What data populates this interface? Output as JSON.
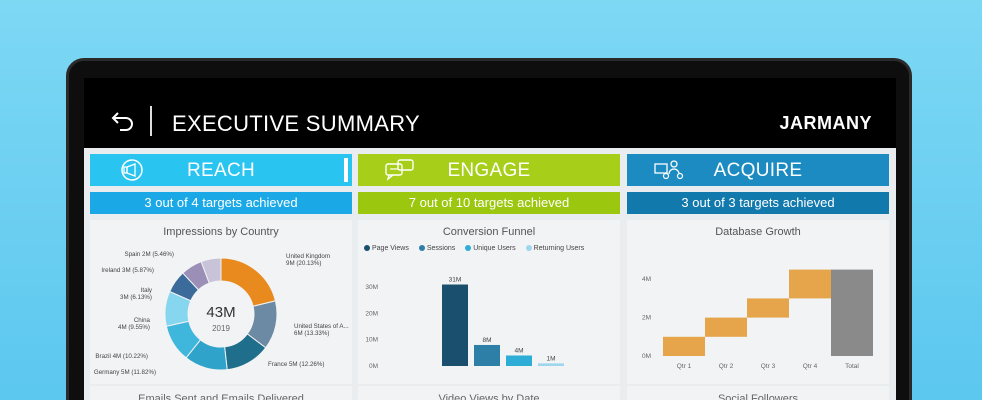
{
  "header": {
    "title": "EXECUTIVE SUMMARY",
    "brand": "JARMANY"
  },
  "columns": {
    "reach": {
      "label": "REACH",
      "subtitle": "3 out of 4 targets achieved",
      "color": "#29c4f0",
      "sub_color": "#1aa9e6"
    },
    "engage": {
      "label": "ENGAGE",
      "subtitle": "7 out of 10 targets achieved",
      "color": "#a7cf1a",
      "sub_color": "#9cc70f"
    },
    "acquire": {
      "label": "ACQUIRE",
      "subtitle": "3 out of 3 targets achieved",
      "color": "#1b8bc2",
      "sub_color": "#1279ad"
    }
  },
  "panels": {
    "impressions": {
      "title": "Impressions by Country",
      "center_value": "43M",
      "center_sub": "2019"
    },
    "funnel": {
      "title": "Conversion Funnel"
    },
    "growth": {
      "title": "Database Growth"
    }
  },
  "bottom_titles": {
    "reach": "Emails Sent and Emails Delivered",
    "engage": "Video Views by Date",
    "acquire": "Social Followers"
  },
  "chart_data": [
    {
      "type": "pie",
      "title": "Impressions by Country",
      "labels": [
        "United Kingdom 9M (20.13%)",
        "United States of A... 6M (13.33%)",
        "France 5M (12.26%)",
        "Germany 5M (11.82%)",
        "Brazil 4M (10.22%)",
        "China 4M (9.55%)",
        "Italy 3M (6.13%)",
        "Ireland 3M (5.87%)",
        "Spain 2M (5.46%)"
      ],
      "values": [
        20.13,
        13.33,
        12.26,
        11.82,
        10.22,
        9.55,
        6.13,
        5.87,
        5.46
      ],
      "colors": [
        "#e88a1d",
        "#6c8aa3",
        "#1e6e8c",
        "#2fa3c9",
        "#3fb7dd",
        "#86d6ef",
        "#3a6b9a",
        "#9b8fb8",
        "#c9c3da"
      ],
      "center_text": "43M",
      "center_sub": "2019"
    },
    {
      "type": "bar",
      "title": "Conversion Funnel",
      "categories": [
        "Page Views",
        "Sessions",
        "Unique Users",
        "Returning Users"
      ],
      "values": [
        31,
        8,
        4,
        1
      ],
      "data_labels": [
        "31M",
        "8M",
        "4M",
        "1M"
      ],
      "colors": [
        "#1a4f6e",
        "#2e7fa8",
        "#2eaed6",
        "#9ed6ee"
      ],
      "y_ticks": [
        "0M",
        "10M",
        "20M",
        "30M"
      ],
      "ylim": [
        0,
        35
      ]
    },
    {
      "type": "bar",
      "title": "Database Growth",
      "categories": [
        "Qtr 1",
        "Qtr 2",
        "Qtr 3",
        "Qtr 4",
        "Total"
      ],
      "ranges": [
        [
          0,
          1
        ],
        [
          1,
          2
        ],
        [
          2,
          3
        ],
        [
          3,
          4.5
        ],
        [
          0,
          4.5
        ]
      ],
      "colors": [
        "#e6a54a",
        "#e6a54a",
        "#e6a54a",
        "#e6a54a",
        "#8a8a8a"
      ],
      "y_ticks": [
        "0M",
        "2M",
        "4M"
      ],
      "ylim": [
        0,
        5
      ]
    }
  ]
}
